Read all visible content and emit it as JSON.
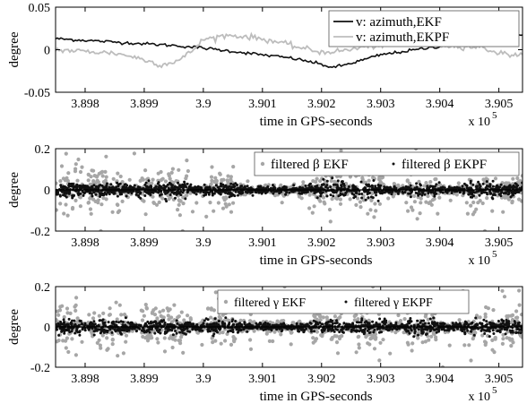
{
  "chart_data": [
    {
      "type": "line",
      "xlabel": "time in GPS-seconds",
      "ylabel": "degree",
      "x_multiplier_label": "x 10",
      "x_multiplier_exp": "5",
      "xlim": [
        3.8975,
        3.9054
      ],
      "ylim": [
        -0.05,
        0.05
      ],
      "xticks": [
        "3.898",
        "3.899",
        "3.9",
        "3.901",
        "3.902",
        "3.903",
        "3.904",
        "3.905"
      ],
      "yticks": [
        "0.05",
        "0",
        "-0.05"
      ],
      "legend_position": "top-right",
      "series": [
        {
          "name": "v: azimuth,EKF",
          "color": "#111111",
          "x": [
            3.8975,
            3.898,
            3.8985,
            3.899,
            3.8995,
            3.9,
            3.9005,
            3.901,
            3.9015,
            3.9018,
            3.9022,
            3.9025,
            3.903,
            3.9035,
            3.904,
            3.9043,
            3.9048,
            3.9054
          ],
          "y": [
            0.013,
            0.011,
            0.009,
            0.007,
            0.005,
            0.002,
            -0.002,
            -0.006,
            -0.01,
            -0.014,
            -0.021,
            -0.016,
            -0.006,
            -0.001,
            0.004,
            0.008,
            0.018,
            0.017
          ]
        },
        {
          "name": "v: azimuth,EKPF",
          "color": "#bdbdbd",
          "x": [
            3.8975,
            3.898,
            3.8985,
            3.8988,
            3.8993,
            3.8996,
            3.8998,
            3.9,
            3.9004,
            3.9008,
            3.9012,
            3.9016,
            3.902,
            3.9024,
            3.9027,
            3.9031,
            3.9035,
            3.9039,
            3.9043,
            3.9047,
            3.905,
            3.9054
          ],
          "y": [
            0.0,
            -0.002,
            -0.004,
            -0.008,
            -0.018,
            -0.012,
            -0.002,
            0.012,
            0.017,
            0.015,
            0.01,
            0.003,
            -0.003,
            -0.001,
            0.003,
            0.006,
            0.008,
            0.006,
            0.004,
            0.003,
            -0.004,
            -0.007
          ]
        }
      ]
    },
    {
      "type": "scatter",
      "xlabel": "time in GPS-seconds",
      "ylabel": "degree",
      "x_multiplier_label": "x 10",
      "x_multiplier_exp": "5",
      "xlim": [
        3.8975,
        3.9054
      ],
      "ylim": [
        -0.2,
        0.2
      ],
      "xticks": [
        "3.898",
        "3.899",
        "3.9",
        "3.901",
        "3.902",
        "3.903",
        "3.904",
        "3.905"
      ],
      "yticks": [
        "0.2",
        "0",
        "-0.2"
      ],
      "legend_position": "top-right",
      "series": [
        {
          "name": "filtered β EKF",
          "color": "#a6a6a6",
          "spread": 0.09
        },
        {
          "name": "filtered β EKPF",
          "color": "#111111",
          "spread": 0.015
        }
      ]
    },
    {
      "type": "scatter",
      "xlabel": "time in GPS-seconds",
      "ylabel": "degree",
      "x_multiplier_label": "x 10",
      "x_multiplier_exp": "5",
      "xlim": [
        3.8975,
        3.9054
      ],
      "ylim": [
        -0.2,
        0.2
      ],
      "xticks": [
        "3.898",
        "3.899",
        "3.9",
        "3.901",
        "3.902",
        "3.903",
        "3.904",
        "3.905"
      ],
      "yticks": [
        "0.2",
        "0",
        "-0.2"
      ],
      "legend_position": "top-right",
      "series": [
        {
          "name": "filtered γ EKF",
          "color": "#a6a6a6",
          "spread": 0.09
        },
        {
          "name": "filtered γ EKPF",
          "color": "#111111",
          "spread": 0.015
        }
      ]
    }
  ]
}
